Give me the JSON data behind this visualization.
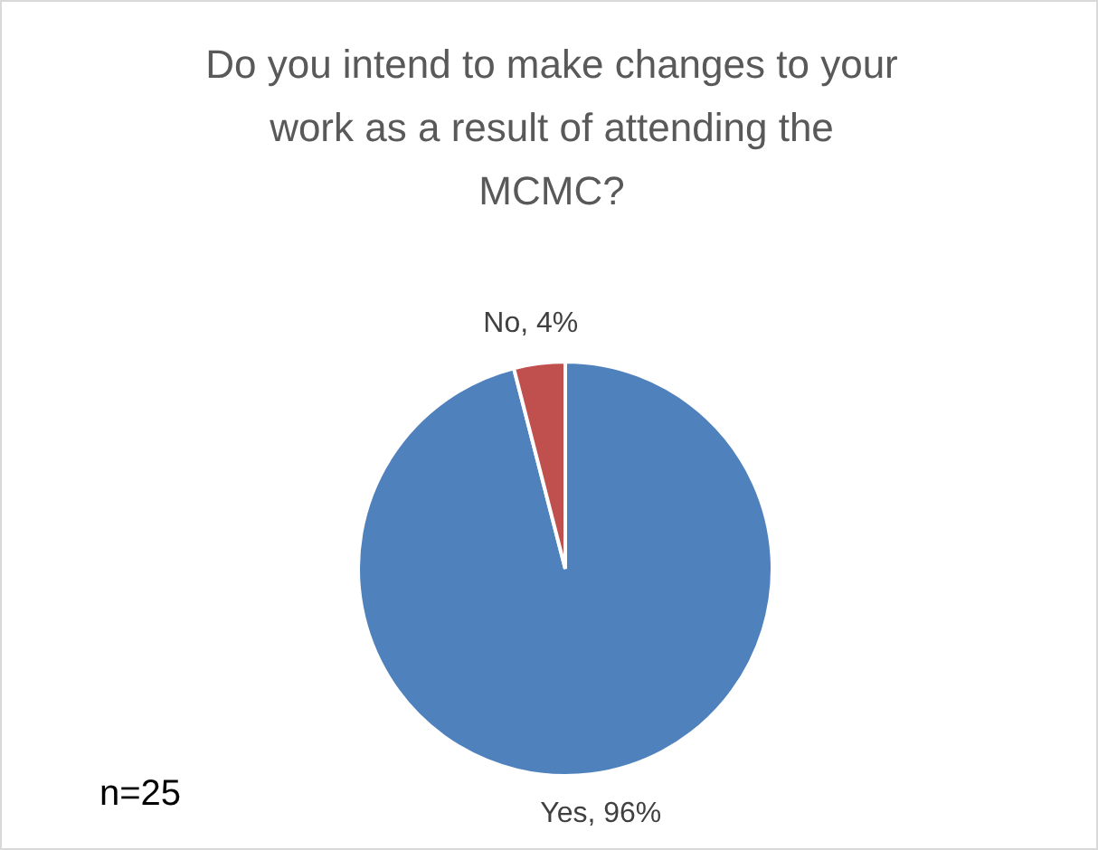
{
  "chart_data": {
    "type": "pie",
    "title": "Do you intend to make changes to your work as a result of attending the MCMC?",
    "categories": [
      "Yes",
      "No"
    ],
    "values": [
      96,
      4
    ],
    "colors": [
      "#4f81bd",
      "#c0504d"
    ],
    "value_labels": [
      "96%",
      "4%"
    ],
    "annotations": [
      "n=25"
    ],
    "legend": false
  }
}
